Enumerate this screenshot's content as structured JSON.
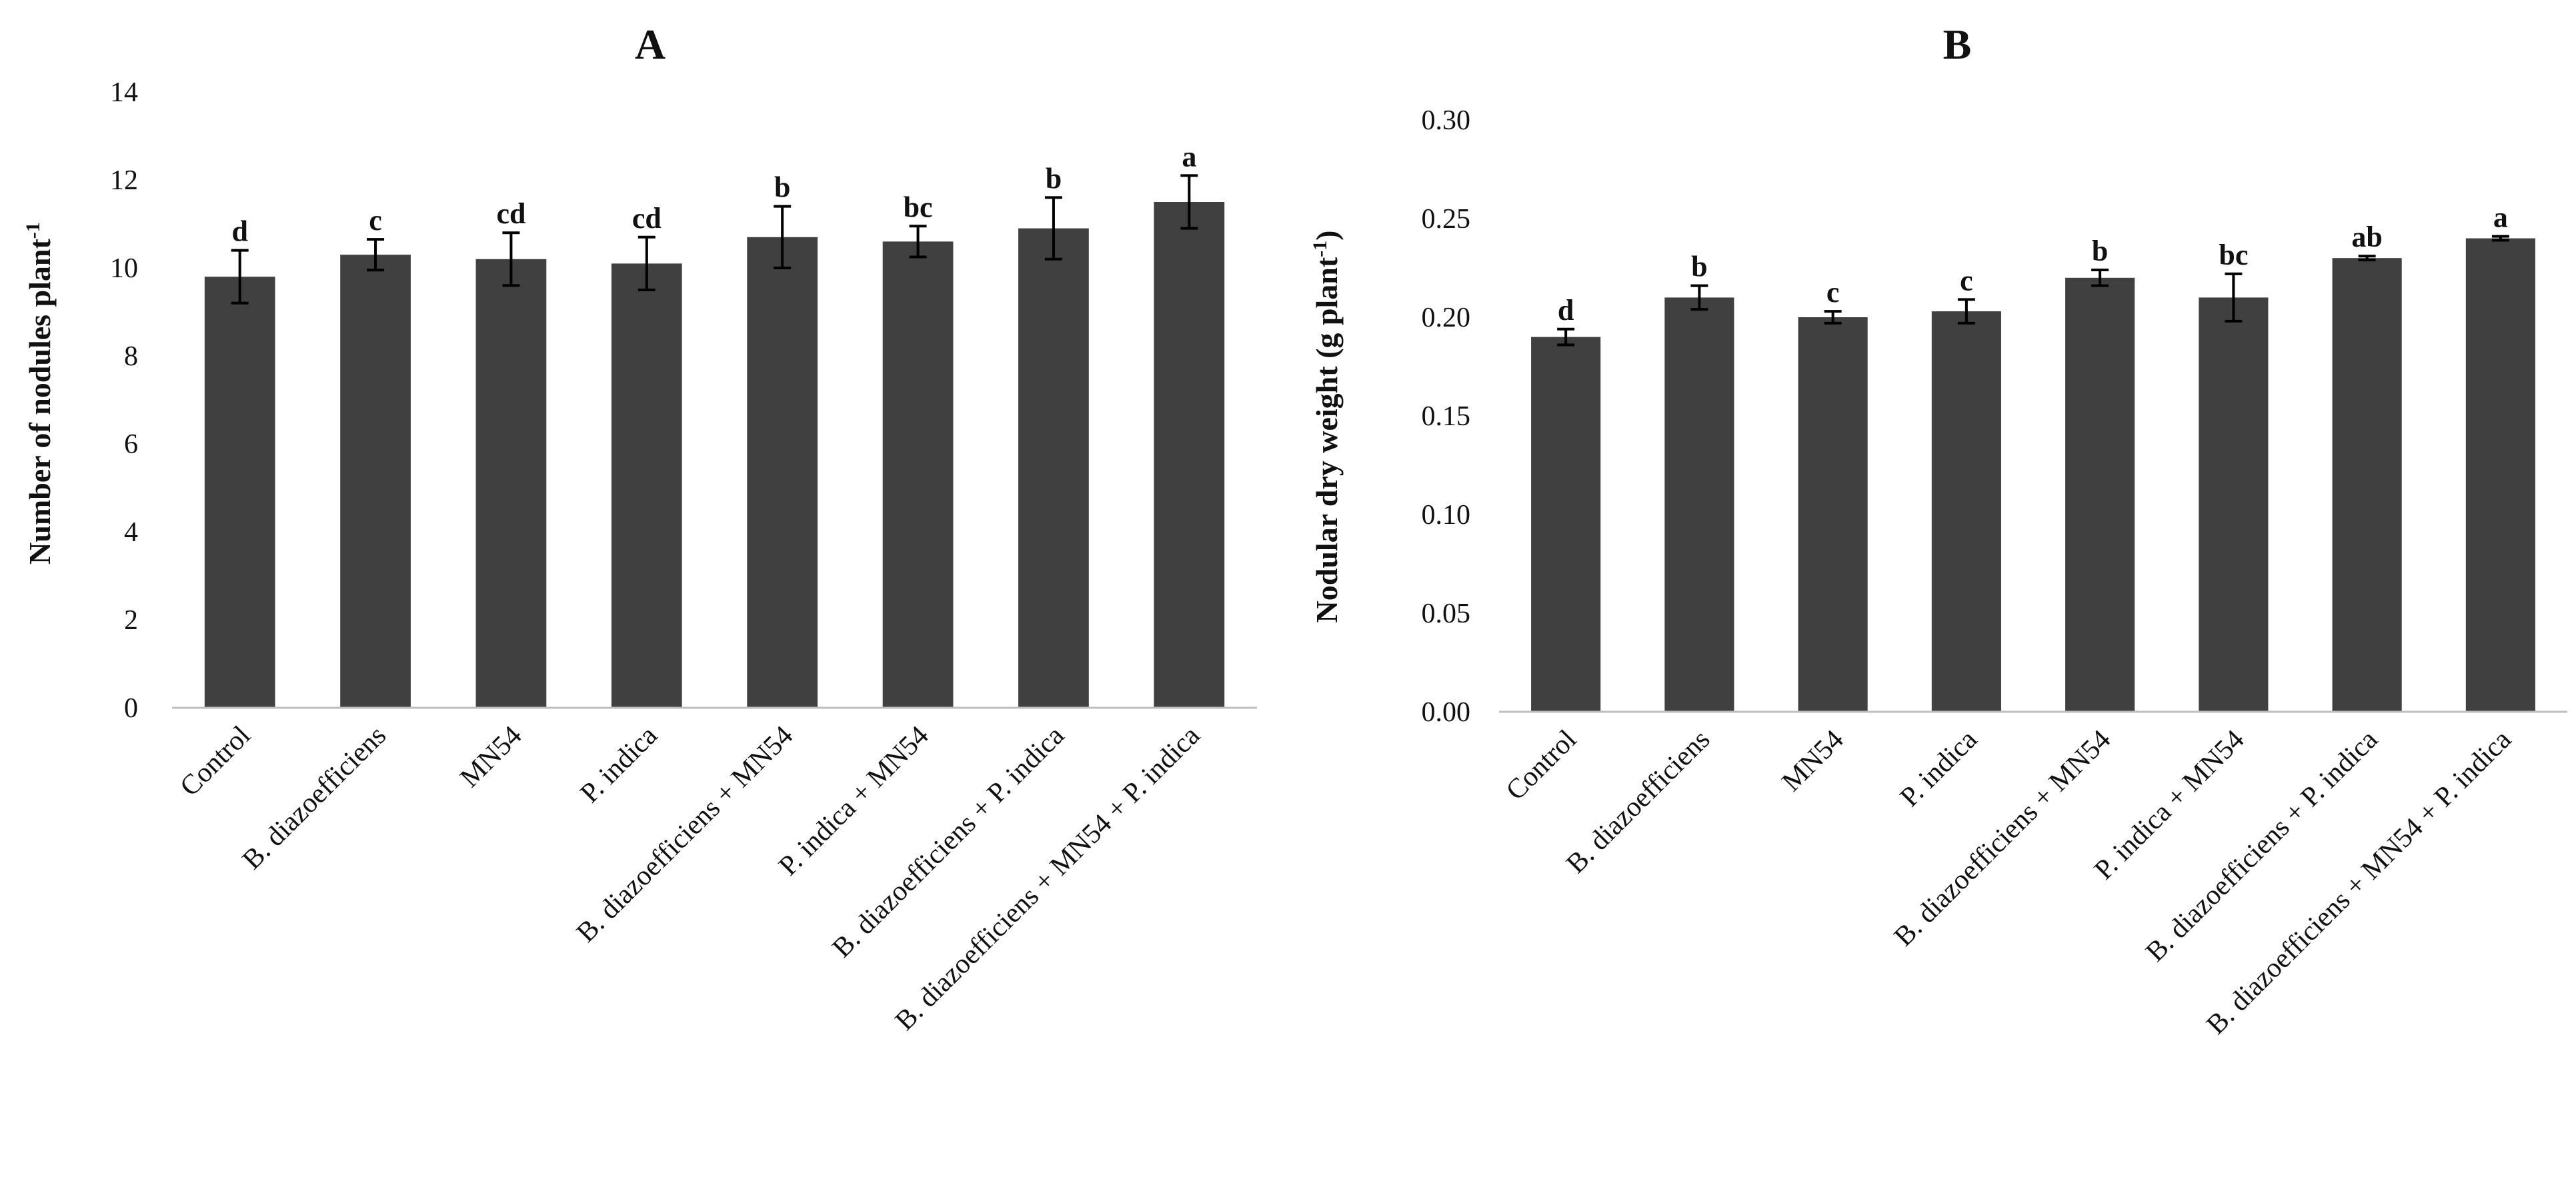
{
  "chart_data": [
    {
      "type": "bar",
      "panel": "A",
      "title": "A",
      "xlabel": "",
      "ylabel": "Number of nodules plant",
      "ylabel_superscript": "-1",
      "ylim": [
        0,
        14
      ],
      "y_ticks": [
        "0",
        "2",
        "4",
        "6",
        "8",
        "10",
        "12",
        "14"
      ],
      "grid": false,
      "bar_color": "#404040",
      "categories": [
        "Control",
        "B. diazoefficiens",
        "MN54",
        "P. indica",
        "B. diazoefficiens + MN54",
        "P. indica + MN54",
        "B. diazoefficiens + P. indica",
        "B. diazoefficiens + MN54 + P. indica"
      ],
      "values": [
        9.8,
        10.3,
        10.2,
        10.1,
        10.7,
        10.6,
        10.9,
        11.5
      ],
      "errors": [
        0.6,
        0.35,
        0.6,
        0.6,
        0.7,
        0.35,
        0.7,
        0.6
      ],
      "significance": [
        "d",
        "c",
        "cd",
        "cd",
        "b",
        "bc",
        "b",
        "a"
      ]
    },
    {
      "type": "bar",
      "panel": "B",
      "title": "B",
      "xlabel": "",
      "ylabel": "Nodular dry weight (g plant",
      "ylabel_superscript": "-1",
      "ylabel_suffix": ")",
      "ylim": [
        0,
        0.3
      ],
      "y_ticks": [
        "0.00",
        "0.05",
        "0.10",
        "0.15",
        "0.20",
        "0.25",
        "0.30"
      ],
      "grid": false,
      "bar_color": "#404040",
      "categories": [
        "Control",
        "B. diazoefficiens",
        "MN54",
        "P. indica",
        "B. diazoefficiens + MN54",
        "P. indica + MN54",
        "B. diazoefficiens + P. indica",
        "B. diazoefficiens + MN54 + P. indica"
      ],
      "values": [
        0.19,
        0.21,
        0.2,
        0.203,
        0.22,
        0.21,
        0.23,
        0.24
      ],
      "errors": [
        0.004,
        0.006,
        0.003,
        0.006,
        0.004,
        0.012,
        0.001,
        0.001
      ],
      "significance": [
        "d",
        "b",
        "c",
        "c",
        "b",
        "bc",
        "ab",
        "a"
      ]
    }
  ]
}
